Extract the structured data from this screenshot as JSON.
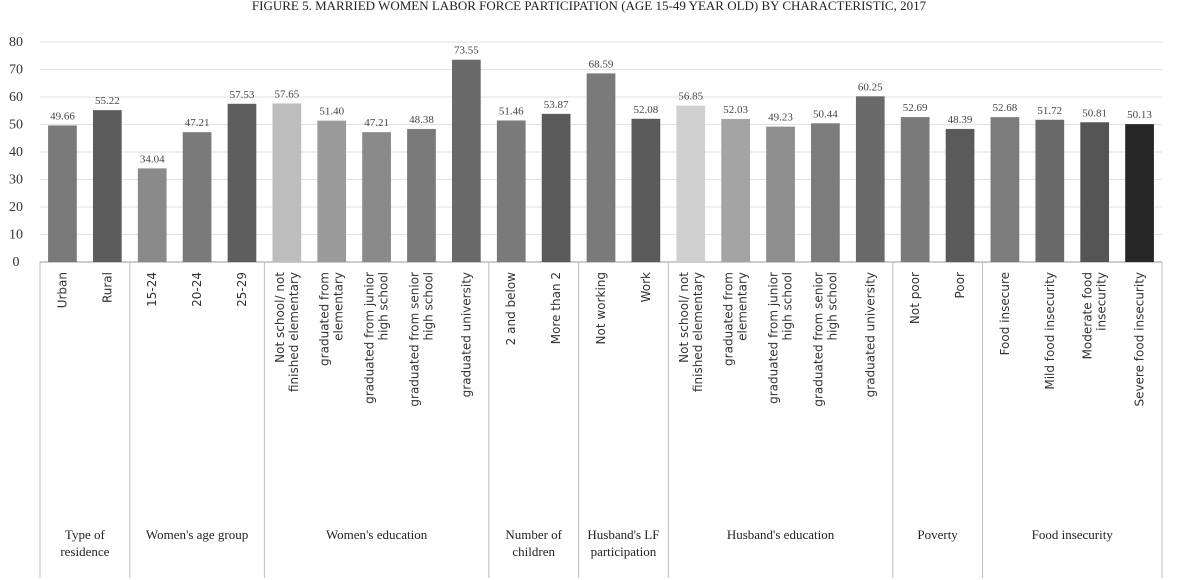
{
  "chart_data": {
    "type": "bar",
    "title": "FIGURE 5. MARRIED WOMEN LABOR FORCE PARTICIPATION (AGE 15-49 YEAR OLD) BY CHARACTERISTIC, 2017",
    "xlabel": "",
    "ylabel": "",
    "ylim": [
      0,
      80
    ],
    "yticks": [
      "0",
      "10",
      "20",
      "30",
      "40",
      "50",
      "60",
      "70",
      "80"
    ],
    "grid": true,
    "legend": "none",
    "groups": [
      {
        "name": "Type of residence",
        "categories": [
          "Urban",
          "Rural"
        ],
        "values": [
          49.66,
          55.22
        ],
        "labels": [
          "49.66",
          "55.22"
        ],
        "colors": [
          "#7a7a7a",
          "#5c5c5c"
        ]
      },
      {
        "name": "Women's age group",
        "categories": [
          "15-24",
          "20-24",
          "25-29"
        ],
        "values": [
          34.04,
          47.21,
          57.53
        ],
        "labels": [
          "34.04",
          "47.21",
          "57.53"
        ],
        "colors": [
          "#8a8a8a",
          "#7a7a7a",
          "#5e5e5e"
        ]
      },
      {
        "name": "Women's education",
        "categories": [
          "Not school/ not finished elementary",
          "graduated from elementary",
          "graduated from junior high school",
          "graduated from senior high school",
          "graduated university"
        ],
        "values": [
          57.65,
          51.4,
          47.21,
          48.38,
          73.55
        ],
        "labels": [
          "57.65",
          "51.40",
          "47.21",
          "48.38",
          "73.55"
        ],
        "colors": [
          "#bdbdbd",
          "#9a9a9a",
          "#8a8a8a",
          "#7a7a7a",
          "#6a6a6a"
        ]
      },
      {
        "name": "Number of children",
        "categories": [
          "2 and below",
          "More than 2"
        ],
        "values": [
          51.46,
          53.87
        ],
        "labels": [
          "51.46",
          "53.87"
        ],
        "colors": [
          "#7a7a7a",
          "#5a5a5a"
        ]
      },
      {
        "name": "Husband's LF participation",
        "categories": [
          "Not working",
          "Work"
        ],
        "values": [
          68.59,
          52.08
        ],
        "labels": [
          "68.59",
          "52.08"
        ],
        "colors": [
          "#7a7a7a",
          "#5a5a5a"
        ]
      },
      {
        "name": "Husband's education",
        "categories": [
          "Not school/ not finished elementary",
          "graduated from elementary",
          "graduated from junior high school",
          "graduated from senior high school",
          "graduated university"
        ],
        "values": [
          56.85,
          52.03,
          49.23,
          50.44,
          60.25
        ],
        "labels": [
          "56.85",
          "52.03",
          "49.23",
          "50.44",
          "60.25"
        ],
        "colors": [
          "#d0d0d0",
          "#a4a4a4",
          "#8e8e8e",
          "#7c7c7c",
          "#6a6a6a"
        ]
      },
      {
        "name": "Poverty",
        "categories": [
          "Not poor",
          "Poor"
        ],
        "values": [
          52.69,
          48.39
        ],
        "labels": [
          "52.69",
          "48.39"
        ],
        "colors": [
          "#7a7a7a",
          "#5a5a5a"
        ]
      },
      {
        "name": "Food insecurity",
        "categories": [
          "Food insecure",
          "Mild food insecurity",
          "Moderate food insecurity",
          "Severe food insecurity"
        ],
        "values": [
          52.68,
          51.72,
          50.81,
          50.13
        ],
        "labels": [
          "52.68",
          "51.72",
          "50.81",
          "50.13"
        ],
        "colors": [
          "#7c7c7c",
          "#6a6a6a",
          "#555555",
          "#262626"
        ]
      }
    ]
  }
}
